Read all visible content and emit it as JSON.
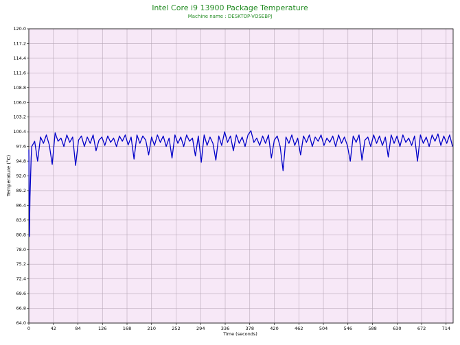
{
  "chart_data": {
    "type": "line",
    "title": "Intel Core i9 13900 Package Temperature",
    "subtitle": "Machine name : DESKTOP-VOSEBPJ",
    "x_label": "Time (seconds)",
    "y_label": "Temperature (°C)",
    "color": "#0000c8",
    "grid": true,
    "xlim": [
      0,
      726
    ],
    "ylim": [
      64,
      120
    ],
    "xticks": [
      0,
      42,
      84,
      126,
      168,
      210,
      252,
      294,
      336,
      378,
      420,
      462,
      504,
      546,
      588,
      630,
      672,
      714
    ],
    "yticks": [
      {
        "value": 64,
        "label": "64.0"
      },
      66.8,
      69.6,
      72.4,
      75.2,
      {
        "value": 78,
        "label": "78.0"
      },
      80.8,
      83.6,
      86.4,
      89.2,
      {
        "value": 92,
        "label": "92.0"
      },
      94.8,
      97.6,
      100.4,
      103.2,
      {
        "value": 106,
        "label": "106.0"
      },
      108.8,
      111.6,
      114.4,
      117.2,
      {
        "value": 120,
        "label": "120.0"
      }
    ],
    "x": [
      0,
      1,
      2,
      4,
      5,
      10,
      15,
      20,
      25,
      30,
      35,
      40,
      45,
      50,
      55,
      60,
      65,
      70,
      75,
      80,
      85,
      90,
      95,
      100,
      105,
      110,
      115,
      120,
      125,
      130,
      135,
      140,
      145,
      150,
      155,
      160,
      165,
      170,
      175,
      180,
      185,
      190,
      195,
      200,
      205,
      210,
      215,
      220,
      225,
      230,
      235,
      240,
      245,
      250,
      255,
      260,
      265,
      270,
      275,
      280,
      285,
      290,
      295,
      300,
      305,
      310,
      315,
      320,
      325,
      330,
      335,
      340,
      345,
      350,
      355,
      360,
      365,
      370,
      375,
      380,
      385,
      390,
      395,
      400,
      405,
      410,
      415,
      420,
      425,
      430,
      435,
      440,
      445,
      450,
      455,
      460,
      465,
      470,
      475,
      480,
      485,
      490,
      495,
      500,
      505,
      510,
      515,
      520,
      525,
      530,
      535,
      540,
      545,
      550,
      555,
      560,
      565,
      570,
      575,
      580,
      585,
      590,
      595,
      600,
      605,
      610,
      615,
      620,
      625,
      630,
      635,
      640,
      645,
      650,
      655,
      660,
      665,
      670,
      675,
      680,
      685,
      690,
      695,
      700,
      705,
      710,
      715,
      720,
      725
    ],
    "values": [
      97.0,
      80.5,
      88.0,
      95.5,
      97.6,
      98.6,
      94.8,
      99.4,
      98.2,
      99.8,
      97.9,
      94.2,
      100.2,
      98.6,
      99.2,
      97.6,
      99.8,
      98.4,
      99.4,
      94.0,
      98.8,
      99.6,
      97.6,
      99.4,
      98.2,
      99.8,
      96.8,
      98.8,
      99.4,
      97.8,
      99.6,
      98.4,
      99.2,
      97.6,
      99.6,
      98.6,
      99.8,
      97.9,
      99.4,
      95.2,
      99.8,
      98.2,
      99.6,
      98.8,
      96.0,
      99.4,
      97.8,
      99.8,
      98.4,
      99.6,
      97.6,
      99.2,
      95.4,
      99.8,
      98.2,
      99.4,
      97.6,
      99.8,
      98.6,
      99.2,
      95.8,
      99.6,
      94.6,
      99.8,
      97.8,
      99.4,
      98.2,
      95.0,
      99.6,
      97.8,
      100.4,
      98.4,
      99.6,
      96.8,
      99.8,
      98.2,
      99.4,
      97.6,
      99.8,
      100.6,
      98.4,
      99.2,
      97.8,
      99.6,
      98.2,
      99.8,
      95.4,
      98.8,
      99.6,
      97.6,
      93.0,
      99.4,
      98.2,
      99.8,
      97.8,
      99.2,
      96.0,
      99.6,
      98.4,
      99.8,
      97.6,
      99.4,
      98.6,
      99.8,
      97.8,
      99.2,
      98.4,
      99.6,
      97.6,
      99.8,
      98.2,
      99.4,
      97.8,
      94.8,
      99.6,
      98.4,
      99.8,
      95.0,
      98.8,
      99.4,
      97.6,
      99.8,
      98.2,
      99.6,
      97.8,
      99.4,
      95.6,
      99.8,
      98.2,
      99.6,
      97.6,
      99.8,
      98.4,
      99.2,
      97.8,
      99.6,
      94.8,
      99.8,
      98.2,
      99.4,
      97.6,
      99.8,
      98.6,
      100.0,
      97.8,
      99.6,
      98.2,
      99.8,
      97.6
    ]
  }
}
